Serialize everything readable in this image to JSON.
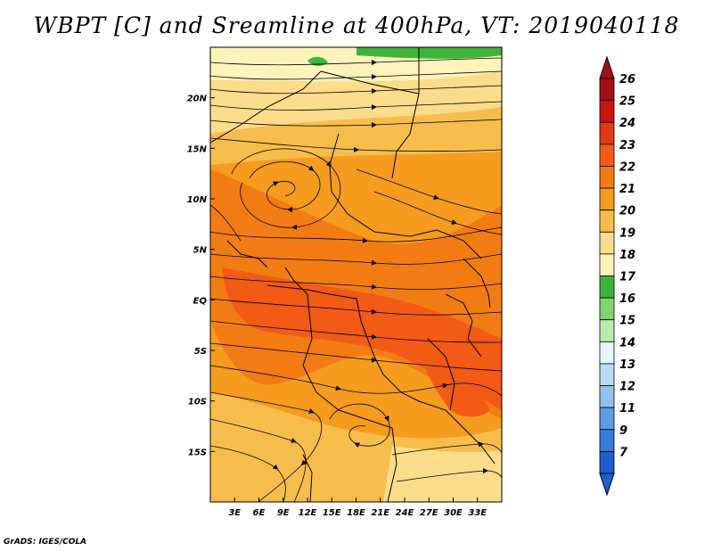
{
  "title": "WBPT [C] and Sreamline at 400hPa, VT: 2019040118",
  "footer": "GrADS: IGES/COLA",
  "map": {
    "lon_range": [
      0,
      36
    ],
    "lat_range": [
      -20,
      25
    ],
    "x_ticks": [
      {
        "lon": 3,
        "label": "3E"
      },
      {
        "lon": 6,
        "label": "6E"
      },
      {
        "lon": 9,
        "label": "9E"
      },
      {
        "lon": 12,
        "label": "12E"
      },
      {
        "lon": 15,
        "label": "15E"
      },
      {
        "lon": 18,
        "label": "18E"
      },
      {
        "lon": 21,
        "label": "21E"
      },
      {
        "lon": 24,
        "label": "24E"
      },
      {
        "lon": 27,
        "label": "27E"
      },
      {
        "lon": 30,
        "label": "30E"
      },
      {
        "lon": 33,
        "label": "33E"
      }
    ],
    "y_ticks": [
      {
        "lat": 20,
        "label": "20N"
      },
      {
        "lat": 15,
        "label": "15N"
      },
      {
        "lat": 10,
        "label": "10N"
      },
      {
        "lat": 5,
        "label": "5N"
      },
      {
        "lat": 0,
        "label": "EQ"
      },
      {
        "lat": -5,
        "label": "5S"
      },
      {
        "lat": -10,
        "label": "10S"
      },
      {
        "lat": -15,
        "label": "15S"
      }
    ]
  },
  "colorbar": {
    "levels": [
      {
        "label": "26",
        "color": "#a50f15"
      },
      {
        "label": "25",
        "color": "#c8170e"
      },
      {
        "label": "24",
        "color": "#e03a12"
      },
      {
        "label": "23",
        "color": "#f25a16"
      },
      {
        "label": "22",
        "color": "#f27c14"
      },
      {
        "label": "21",
        "color": "#f59b1e"
      },
      {
        "label": "20",
        "color": "#f7bd4c"
      },
      {
        "label": "19",
        "color": "#fbdc8a"
      },
      {
        "label": "18",
        "color": "#fdf3bb"
      },
      {
        "label": "17",
        "color": "#3fb43c"
      },
      {
        "label": "16",
        "color": "#7fd46e"
      },
      {
        "label": "15",
        "color": "#b8ebac"
      },
      {
        "label": "14",
        "color": "#e2f6fb"
      },
      {
        "label": "13",
        "color": "#b8dcf5"
      },
      {
        "label": "12",
        "color": "#8fc2ee"
      },
      {
        "label": "11",
        "color": "#5d9de4"
      },
      {
        "label": "9",
        "color": "#3a7bdc"
      },
      {
        "label": "7",
        "color": "#1e5fd1"
      }
    ],
    "top_arrow_color": "#a50f15",
    "bottom_arrow_color": "#1e5fd1"
  }
}
